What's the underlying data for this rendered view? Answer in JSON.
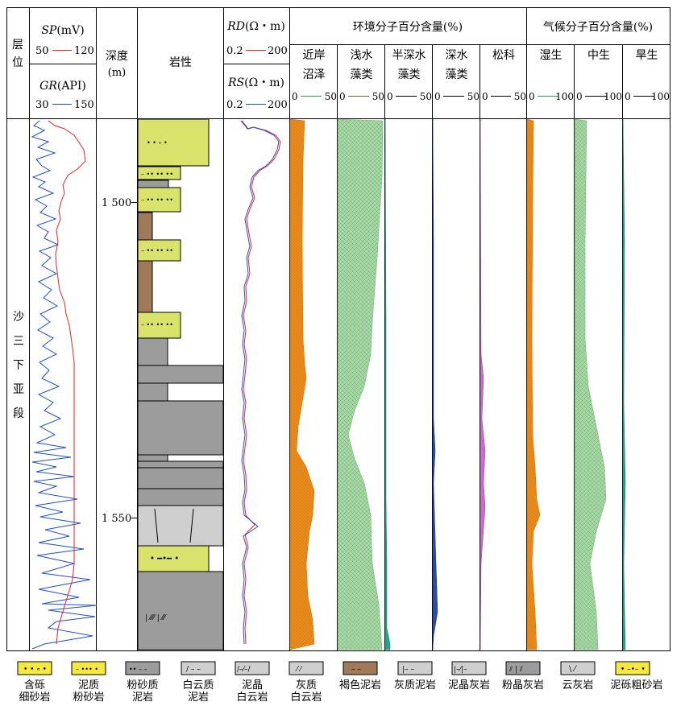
{
  "header": {
    "layer_line1": "层",
    "layer_line2": "位",
    "sp_label": "SP",
    "sp_unit": "(mV)",
    "sp_min": "50",
    "sp_max": "120",
    "gr_label": "GR",
    "gr_unit": "(API)",
    "gr_min": "30",
    "gr_max": "150",
    "depth_line1": "深度",
    "depth_line2": "(m)",
    "lithology": "岩性",
    "rd_label": "RD",
    "rd_unit": "(Ω・m)",
    "rd_min": "0.2",
    "rd_max": "200",
    "rs_label": "RS",
    "rs_unit": "(Ω・m)",
    "rs_min": "0.2",
    "rs_max": "200",
    "env_group": "环境分子百分含量(%)",
    "climate_group": "气候分子百分含量(%)"
  },
  "stratum_label": [
    "沙",
    "三",
    "下",
    "亚",
    "段"
  ],
  "depth_ticks": [
    "1 500",
    "1 550"
  ],
  "pollen_columns": [
    {
      "line1": "近岸",
      "line2": "沼泽",
      "min": "0",
      "max": "50",
      "color": "#2e9e4f"
    },
    {
      "line1": "浅水",
      "line2": "藻类",
      "min": "0",
      "max": "50",
      "color": "#8b5a2b"
    },
    {
      "line1": "半深水",
      "line2": "藻类",
      "min": "0",
      "max": "50",
      "color": "#000000"
    },
    {
      "line1": "深水",
      "line2": "藻类",
      "min": "0",
      "max": "50",
      "color": "#000000"
    },
    {
      "line1": "松科",
      "line2": "",
      "min": "0",
      "max": "50",
      "color": "#000000"
    },
    {
      "line1": "湿生",
      "line2": "",
      "min": "0",
      "max": "100",
      "color": "#2e9e4f"
    },
    {
      "line1": "中生",
      "line2": "",
      "min": "0",
      "max": "100",
      "color": "#000000"
    },
    {
      "line1": "旱生",
      "line2": "",
      "min": "0",
      "max": "100",
      "color": "#000000"
    }
  ],
  "legend": [
    {
      "line1": "含砾",
      "line2": "细砂岩"
    },
    {
      "line1": "泥质",
      "line2": "粉砂岩"
    },
    {
      "line1": "粉砂质",
      "line2": "泥岩"
    },
    {
      "line1": "白云质",
      "line2": "泥岩"
    },
    {
      "line1": "泥晶",
      "line2": "白云岩"
    },
    {
      "line1": "灰质",
      "line2": "白云岩"
    },
    {
      "line1": "褐色泥岩",
      "line2": ""
    },
    {
      "line1": "灰质泥岩",
      "line2": ""
    },
    {
      "line1": "泥晶灰岩",
      "line2": ""
    },
    {
      "line1": "粉晶灰岩",
      "line2": ""
    },
    {
      "line1": "云灰岩",
      "line2": ""
    },
    {
      "line1": "泥砾粗砂岩",
      "line2": ""
    }
  ],
  "colors": {
    "sp_curve": "#e8261f",
    "gr_curve": "#1f4fd6",
    "rd_curve": "#e8261f",
    "rs_curve": "#1f4fd6",
    "sandstone": "#d9e26b",
    "mudstone_gray": "#9c9c9c",
    "dolomite_light": "#cfcfcf",
    "brown_mudstone": "#a0785a",
    "swamp_fill": "#e98a1c",
    "shallow_algae_fill": "#a9d8a8",
    "semi_deep_fill": "#22a58f",
    "deep_algae_fill": "#2a4ea3",
    "pine_fill": "#c46ec9",
    "wet_fill": "#e98a1c",
    "meso_fill": "#a9d8a8",
    "xero_fill": "#22a58f"
  }
}
